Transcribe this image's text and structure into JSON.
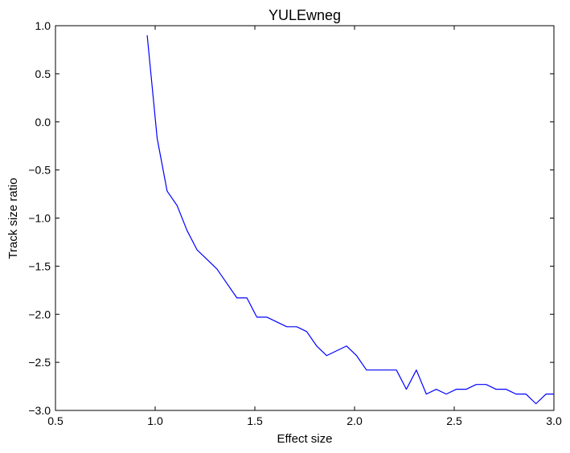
{
  "chart_data": {
    "type": "line",
    "title": "YULEwneg",
    "xlabel": "Effect size",
    "ylabel": "Track size ratio",
    "xlim": [
      0.5,
      3.0
    ],
    "ylim": [
      -3.0,
      1.0
    ],
    "xticks": [
      0.5,
      1.0,
      1.5,
      2.0,
      2.5,
      3.0
    ],
    "xtick_labels": [
      "0.5",
      "1.0",
      "1.5",
      "2.0",
      "2.5",
      "3.0"
    ],
    "yticks": [
      1.0,
      0.5,
      0.0,
      -0.5,
      -1.0,
      -1.5,
      -2.0,
      -2.5,
      -3.0
    ],
    "ytick_labels": [
      "1.0",
      "0.5",
      "0.0",
      "−0.5",
      "−1.0",
      "−1.5",
      "−2.0",
      "−2.5",
      "−3.0"
    ],
    "grid": false,
    "series": [
      {
        "color": "#0000ff",
        "x": [
          0.96,
          1.01,
          1.06,
          1.11,
          1.16,
          1.21,
          1.26,
          1.31,
          1.36,
          1.41,
          1.46,
          1.51,
          1.56,
          1.61,
          1.66,
          1.71,
          1.76,
          1.81,
          1.86,
          1.91,
          1.96,
          2.01,
          2.06,
          2.11,
          2.16,
          2.21,
          2.26,
          2.31,
          2.36,
          2.41,
          2.46,
          2.51,
          2.56,
          2.61,
          2.66,
          2.71,
          2.76,
          2.81,
          2.86,
          2.91,
          2.96,
          3.0
        ],
        "y": [
          0.9,
          -0.17,
          -0.72,
          -0.87,
          -1.13,
          -1.33,
          -1.43,
          -1.53,
          -1.68,
          -1.83,
          -1.83,
          -2.03,
          -2.03,
          -2.08,
          -2.13,
          -2.13,
          -2.18,
          -2.33,
          -2.43,
          -2.38,
          -2.33,
          -2.43,
          -2.58,
          -2.58,
          -2.58,
          -2.58,
          -2.78,
          -2.58,
          -2.83,
          -2.78,
          -2.83,
          -2.78,
          -2.78,
          -2.73,
          -2.73,
          -2.78,
          -2.78,
          -2.83,
          -2.83,
          -2.93,
          -2.83,
          -2.83
        ]
      }
    ]
  }
}
